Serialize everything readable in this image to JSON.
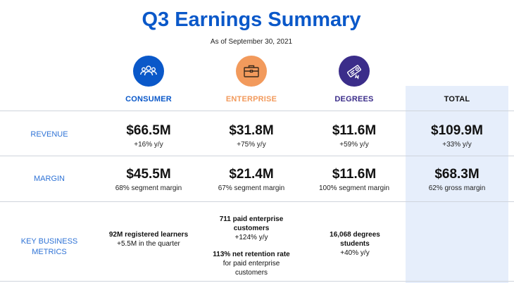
{
  "title": "Q3 Earnings Summary",
  "subtitle": "As of September 30, 2021",
  "colors": {
    "title": "#0a58c9",
    "consumer": "#0a58c9",
    "enterprise": "#f29a5c",
    "degrees": "#3b2d8a",
    "row_label": "#2f73d6",
    "total_bg": "#e6eefb"
  },
  "columns": [
    {
      "label": "CONSUMER",
      "icon": "people-group-icon"
    },
    {
      "label": "ENTERPRISE",
      "icon": "briefcase-icon"
    },
    {
      "label": "DEGREES",
      "icon": "diploma-icon"
    },
    {
      "label": "TOTAL"
    }
  ],
  "rows": {
    "revenue": {
      "label": "REVENUE",
      "cells": [
        {
          "value": "$66.5M",
          "sub": "+16% y/y"
        },
        {
          "value": "$31.8M",
          "sub": "+75% y/y"
        },
        {
          "value": "$11.6M",
          "sub": "+59% y/y"
        },
        {
          "value": "$109.9M",
          "sub": "+33% y/y"
        }
      ]
    },
    "margin": {
      "label": "MARGIN",
      "cells": [
        {
          "value": "$45.5M",
          "sub": "68% segment margin"
        },
        {
          "value": "$21.4M",
          "sub": "67% segment margin"
        },
        {
          "value": "$11.6M",
          "sub": "100% segment margin"
        },
        {
          "value": "$68.3M",
          "sub": "62% gross margin"
        }
      ]
    },
    "metrics": {
      "label_line1": "KEY BUSINESS",
      "label_line2": "METRICS",
      "consumer": {
        "bold": "92M registered learners",
        "sub": "+5.5M in the quarter"
      },
      "enterprise": {
        "bold1": "711 paid enterprise customers",
        "sub1": "+124% y/y",
        "bold2": "113% net retention rate",
        "sub2": "for paid enterprise customers"
      },
      "degrees": {
        "bold": "16,068 degrees students",
        "sub": "+40% y/y"
      }
    }
  }
}
